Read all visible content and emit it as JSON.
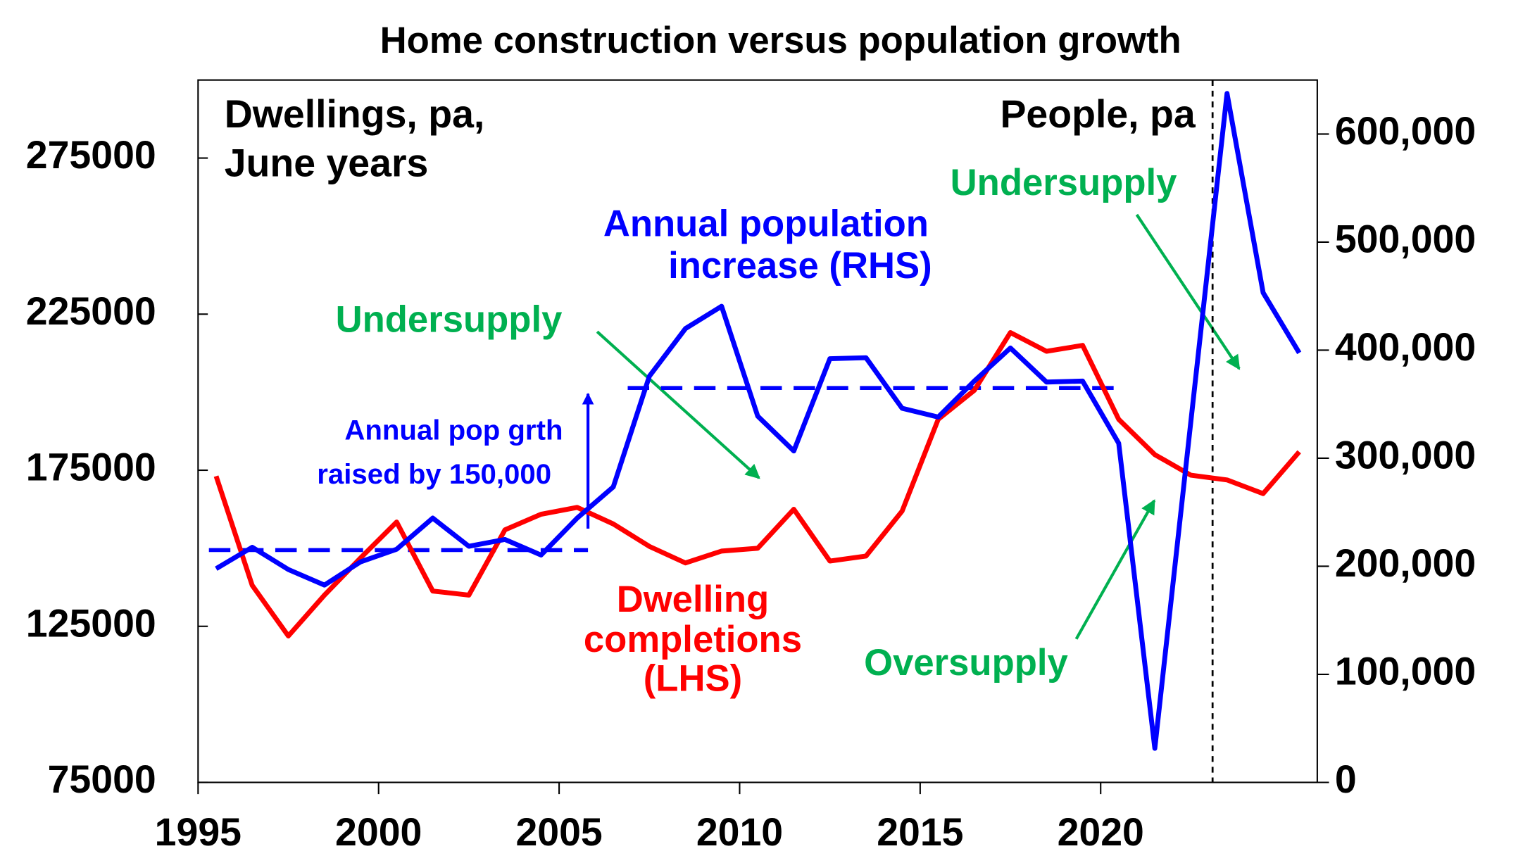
{
  "chart_data": {
    "type": "line",
    "title": "Home construction versus population growth",
    "x": [
      1995.5,
      1996.5,
      1997.5,
      1998.5,
      1999.5,
      2000.5,
      2001.5,
      2002.5,
      2003.5,
      2004.5,
      2005.5,
      2006.5,
      2007.5,
      2008.5,
      2009.5,
      2010.5,
      2011.5,
      2012.5,
      2013.5,
      2014.5,
      2015.5,
      2016.5,
      2017.5,
      2018.5,
      2019.5,
      2020.5,
      2021.5,
      2022.5,
      2023.5,
      2024.5,
      2025.5
    ],
    "series": [
      {
        "name": "Dwelling completions (LHS)",
        "color": "#ff0000",
        "axis": "y",
        "values": [
          173100,
          138100,
          121900,
          135000,
          146900,
          158400,
          136300,
          135000,
          155900,
          160900,
          163100,
          157800,
          150600,
          145300,
          149100,
          150000,
          162500,
          145900,
          147500,
          161900,
          191300,
          200600,
          219100,
          213100,
          215000,
          191300,
          180000,
          173400,
          171900,
          167500,
          180900
        ]
      },
      {
        "name": "Annual population increase (RHS)",
        "color": "#0000ff",
        "axis": "y2",
        "values": [
          197800,
          217600,
          197000,
          182600,
          204100,
          215800,
          244600,
          218500,
          224800,
          210400,
          244600,
          273400,
          375900,
          420000,
          440600,
          339000,
          306700,
          392100,
          393000,
          346200,
          338100,
          371400,
          402000,
          370500,
          371400,
          313800,
          31500,
          334500,
          637600,
          453200,
          397500
        ]
      }
    ],
    "reference_lines": [
      {
        "x": [
          1995.3,
          2005.8
        ],
        "value": 215000,
        "axis": "y2",
        "color": "#0000ff"
      },
      {
        "x": [
          2006.9,
          2020.6
        ],
        "value": 365000,
        "axis": "y2",
        "color": "#0000ff"
      }
    ],
    "marker_x": 2023.1,
    "xlim": [
      1995,
      2026
    ],
    "xticks": [
      1995,
      2000,
      2005,
      2010,
      2015,
      2020
    ],
    "ylim": [
      75000,
      300000
    ],
    "yticks": [
      75000,
      125000,
      175000,
      225000,
      275000
    ],
    "y2lim": [
      0,
      650000
    ],
    "y2ticks": [
      0,
      {
        "value": 100000,
        "label": "100,000"
      },
      {
        "value": 200000,
        "label": "200,000"
      },
      {
        "value": 300000,
        "label": "300,000"
      },
      {
        "value": 400000,
        "label": "400,000"
      },
      {
        "value": 500000,
        "label": "500,000"
      },
      {
        "value": 600000,
        "label": "600,000"
      }
    ],
    "annotations": [
      "Dwellings, pa,",
      "June years",
      "People, pa",
      "Annual population",
      "increase (RHS)",
      "Undersupply",
      "Undersupply",
      "Annual pop grth",
      "raised by 150,000",
      "Dwelling",
      "completions",
      "(LHS)",
      "Oversupply"
    ]
  }
}
